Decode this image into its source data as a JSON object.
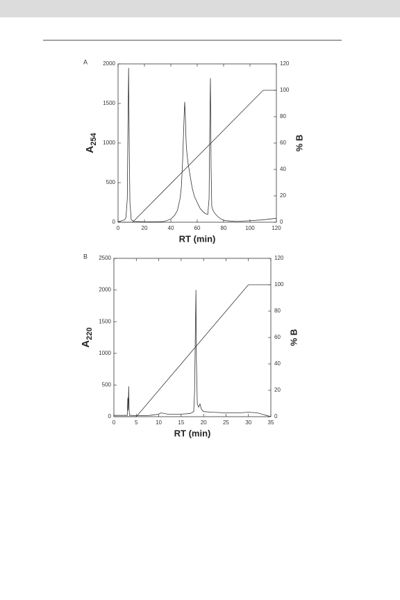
{
  "chart_data": [
    {
      "type": "line",
      "panel_label": "A",
      "xlabel": "RT (min)",
      "ylabel": "A",
      "ylabel_subscript": "254",
      "y2label": "% B",
      "xlim": [
        0,
        120
      ],
      "xticks": [
        0,
        20,
        40,
        60,
        80,
        100,
        120
      ],
      "ylim": [
        0,
        2000
      ],
      "yticks": [
        0,
        500,
        1000,
        1500,
        2000
      ],
      "y2lim": [
        0,
        120
      ],
      "y2ticks": [
        0,
        20,
        40,
        60,
        80,
        100,
        120
      ],
      "series": [
        {
          "color": "#333333",
          "axis": "y",
          "x": [
            0,
            3,
            5,
            6,
            7,
            7.5,
            8,
            8.5,
            9,
            10,
            12,
            20,
            30,
            35,
            40,
            43,
            45,
            47,
            48,
            49,
            50,
            50.5,
            51,
            51.5,
            52,
            53,
            54,
            55,
            56,
            57,
            58,
            60,
            62,
            64,
            66,
            68,
            69,
            69.5,
            70,
            70.5,
            71,
            72,
            73,
            74,
            75,
            78,
            80,
            85,
            90,
            100,
            110,
            120
          ],
          "values": [
            5,
            20,
            30,
            60,
            300,
            1200,
            1950,
            900,
            250,
            30,
            10,
            5,
            5,
            10,
            40,
            90,
            150,
            300,
            450,
            800,
            1300,
            1520,
            1350,
            1050,
            900,
            750,
            650,
            550,
            450,
            380,
            320,
            250,
            180,
            140,
            110,
            100,
            300,
            1200,
            1820,
            700,
            200,
            150,
            120,
            100,
            80,
            40,
            25,
            15,
            10,
            20,
            30,
            50
          ]
        },
        {
          "color": "#333333",
          "axis": "y2",
          "x": [
            0,
            11,
            110,
            120
          ],
          "values": [
            0,
            0,
            100,
            100
          ]
        }
      ]
    },
    {
      "type": "line",
      "panel_label": "B",
      "xlabel": "RT (min)",
      "ylabel": "A",
      "ylabel_subscript": "220",
      "y2label": "% B",
      "xlim": [
        0,
        35
      ],
      "xticks": [
        0,
        5,
        10,
        15,
        20,
        25,
        30,
        35
      ],
      "ylim": [
        0,
        2500
      ],
      "yticks": [
        0,
        500,
        1000,
        1500,
        2000,
        2500
      ],
      "y2lim": [
        0,
        120
      ],
      "y2ticks": [
        0,
        20,
        40,
        60,
        80,
        100,
        120
      ],
      "series": [
        {
          "color": "#333333",
          "axis": "y",
          "x": [
            0,
            3,
            3.1,
            3.2,
            3.3,
            3.4,
            3.5,
            4,
            5,
            8,
            10,
            10.5,
            12,
            15,
            17,
            17.8,
            18,
            18.2,
            18.3,
            18.4,
            18.6,
            18.9,
            19.2,
            19.5,
            20,
            22,
            25,
            28,
            30,
            32,
            33,
            34,
            35
          ],
          "values": [
            20,
            20,
            300,
            100,
            480,
            100,
            20,
            20,
            15,
            20,
            40,
            60,
            40,
            40,
            50,
            80,
            400,
            1500,
            2000,
            900,
            200,
            150,
            200,
            120,
            80,
            70,
            60,
            60,
            70,
            60,
            40,
            20,
            0
          ]
        },
        {
          "color": "#333333",
          "axis": "y2",
          "x": [
            0,
            5,
            30,
            35
          ],
          "values": [
            0,
            0,
            100,
            100
          ]
        }
      ]
    }
  ]
}
